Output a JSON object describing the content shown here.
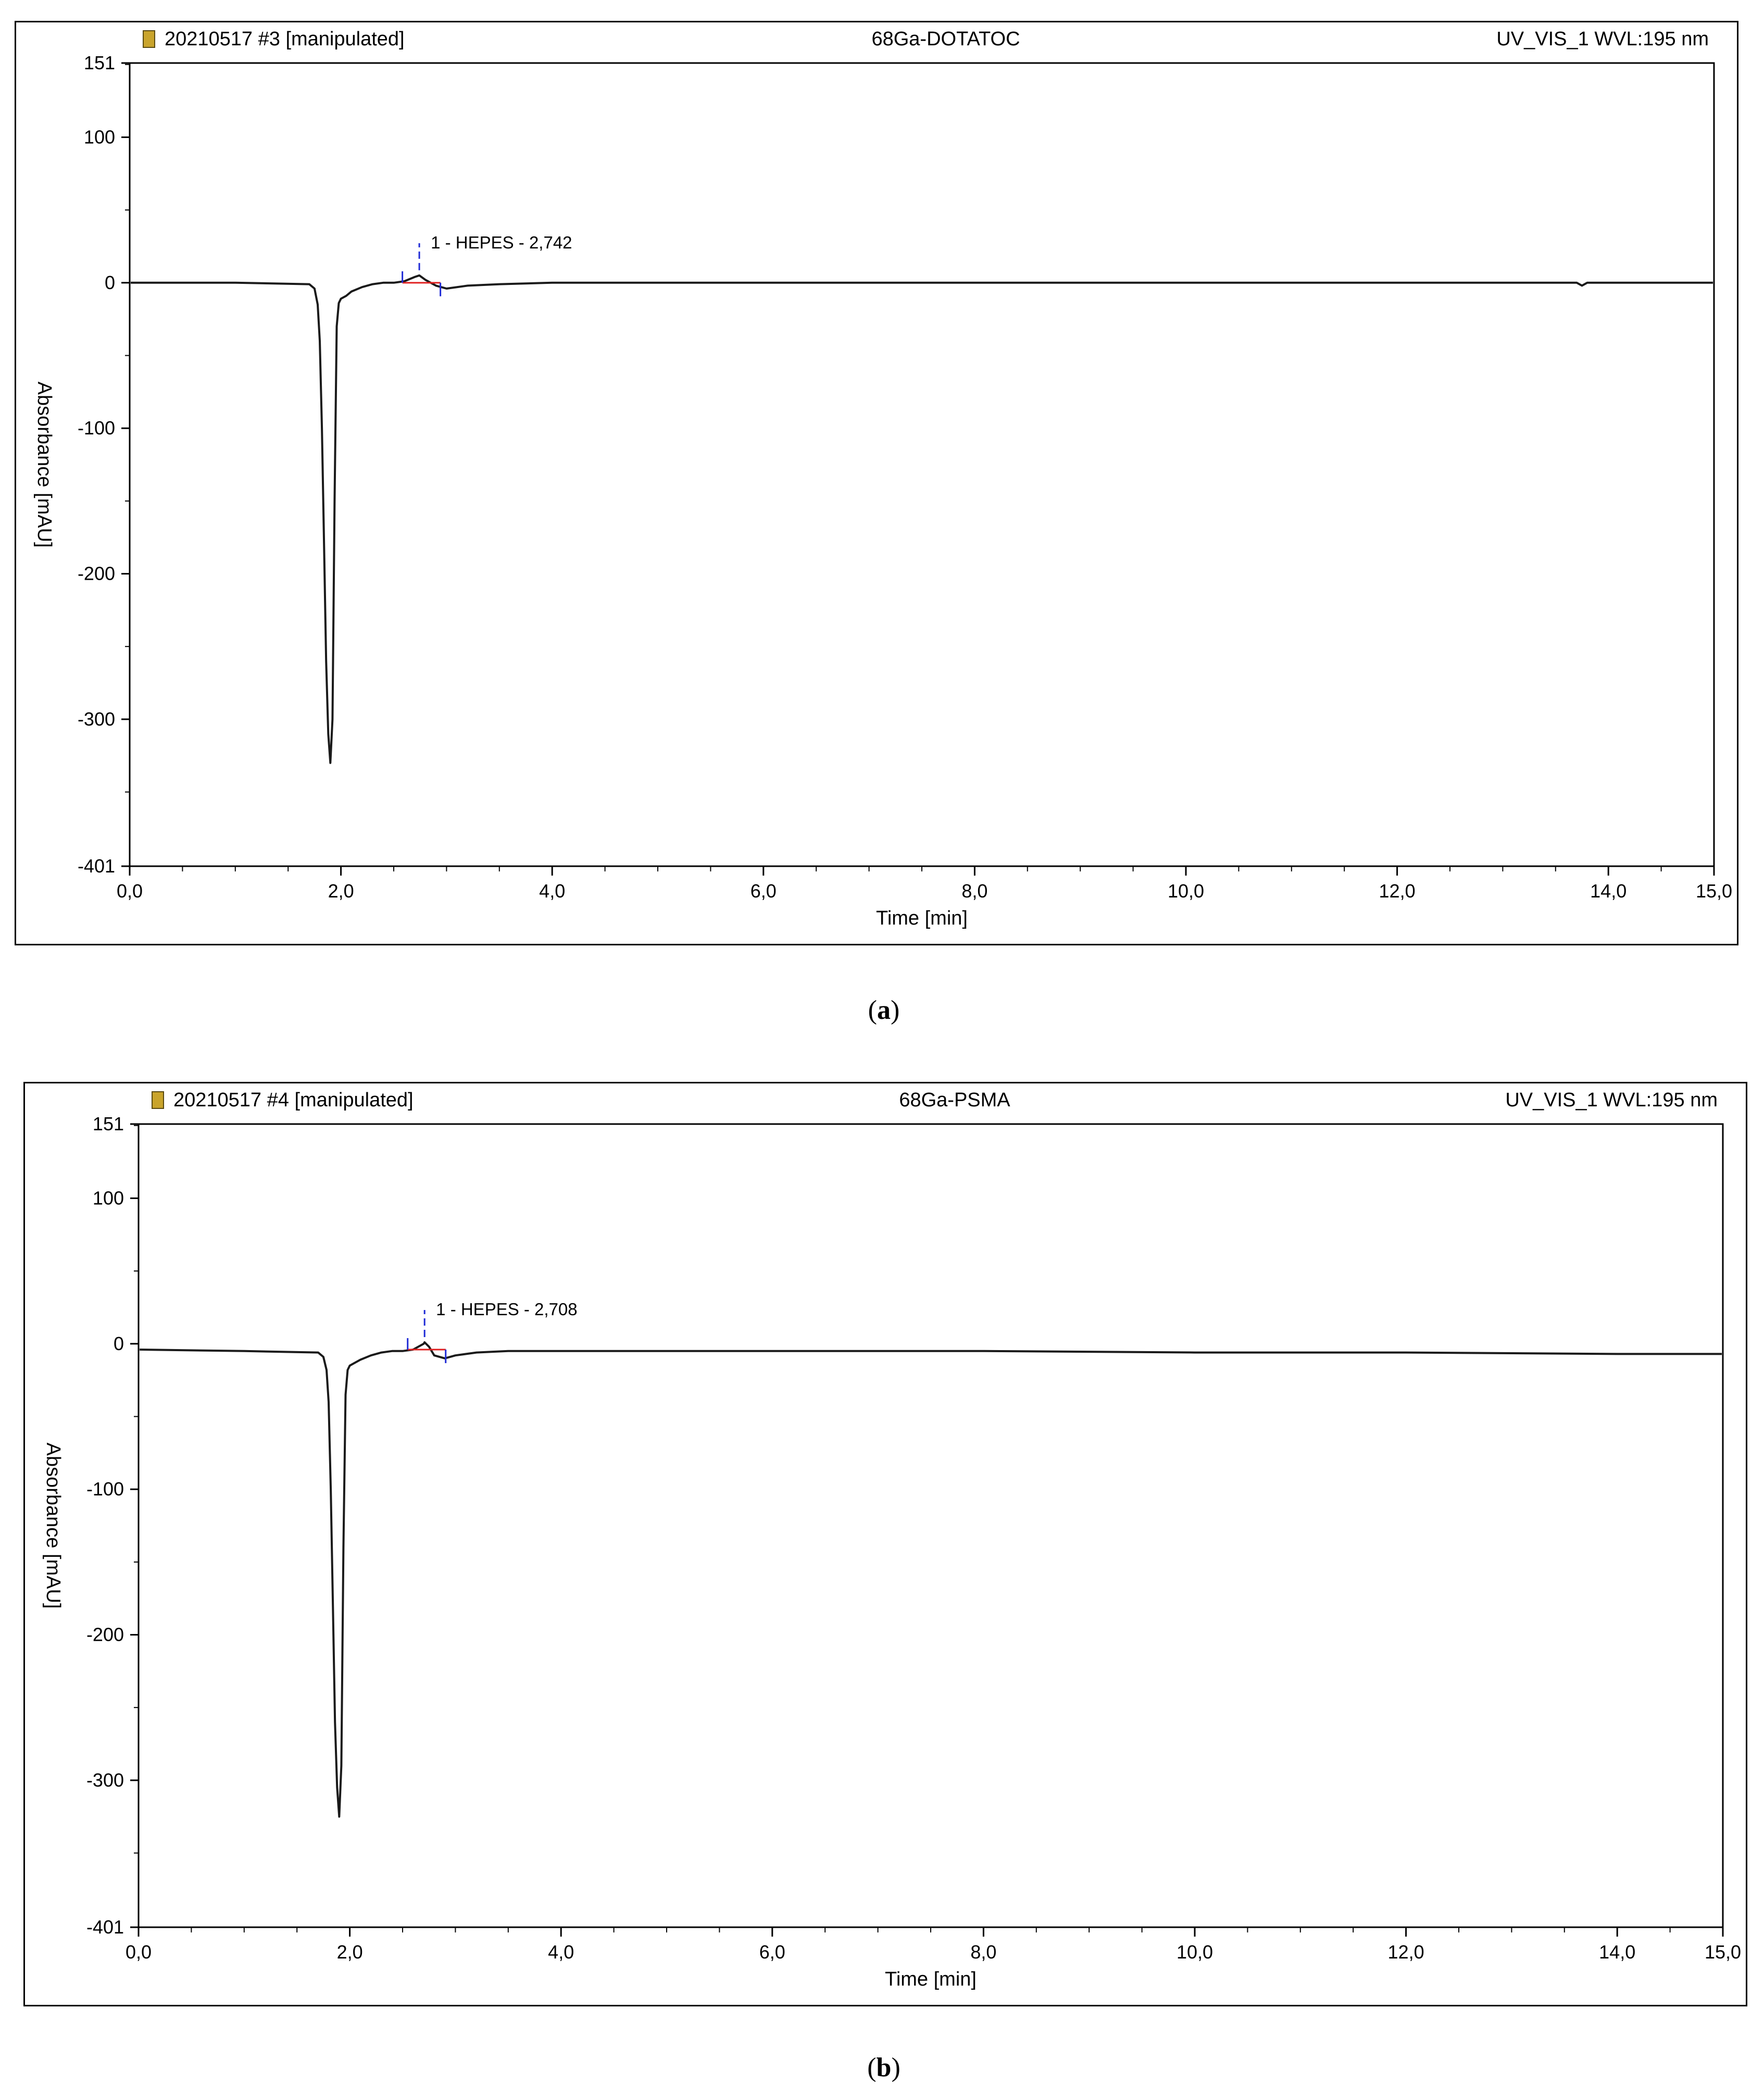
{
  "chart_data": [
    {
      "type": "line",
      "panel_label": "a",
      "header": {
        "injection": "20210517  #3  [manipulated]",
        "sample": "68Ga-DOTATOC",
        "detector": "UV_VIS_1  WVL:195  nm"
      },
      "xlabel": "Time [min]",
      "ylabel": "Absorbance [mAU]",
      "xlim": [
        0,
        15
      ],
      "ylim": [
        -401,
        151
      ],
      "x_ticks": [
        "0,0",
        "2,0",
        "4,0",
        "6,0",
        "8,0",
        "10,0",
        "12,0",
        "14,0",
        "15,0"
      ],
      "x_tick_values": [
        0,
        2,
        4,
        6,
        8,
        10,
        12,
        14,
        15
      ],
      "y_ticks": [
        "151",
        "100",
        "0",
        "-100",
        "-200",
        "-300",
        "-401"
      ],
      "y_tick_values": [
        151,
        100,
        0,
        -100,
        -200,
        -300,
        -401
      ],
      "series": [
        {
          "x": [
            0.0,
            1.0,
            1.7,
            1.75,
            1.78,
            1.8,
            1.82,
            1.84,
            1.86,
            1.88,
            1.9,
            1.92,
            1.94,
            1.96,
            1.98,
            2.0,
            2.05,
            2.1,
            2.2,
            2.3,
            2.4,
            2.5,
            2.6,
            2.7,
            2.742,
            2.8,
            2.9,
            3.0,
            3.2,
            3.5,
            4.0,
            6.0,
            8.0,
            10.0,
            12.0,
            13.7,
            13.75,
            13.8,
            15.0
          ],
          "y": [
            0,
            0,
            -1,
            -4,
            -15,
            -40,
            -100,
            -180,
            -260,
            -310,
            -330,
            -300,
            -150,
            -30,
            -14,
            -11,
            -9,
            -6,
            -3,
            -1,
            0,
            0,
            1,
            4,
            5,
            2,
            -2,
            -4,
            -2,
            -1,
            0,
            0,
            0,
            0,
            0,
            0,
            -2,
            0,
            0
          ]
        }
      ],
      "annotations": [
        {
          "text": "1 - HEPES - 2,742",
          "x": 2.742,
          "y": 5
        }
      ]
    },
    {
      "type": "line",
      "panel_label": "b",
      "header": {
        "injection": "20210517  #4  [manipulated]",
        "sample": "68Ga-PSMA",
        "detector": "UV_VIS_1  WVL:195  nm"
      },
      "xlabel": "Time [min]",
      "ylabel": "Absorbance [mAU]",
      "xlim": [
        0,
        15
      ],
      "ylim": [
        -401,
        151
      ],
      "x_ticks": [
        "0,0",
        "2,0",
        "4,0",
        "6,0",
        "8,0",
        "10,0",
        "12,0",
        "14,0",
        "15,0"
      ],
      "x_tick_values": [
        0,
        2,
        4,
        6,
        8,
        10,
        12,
        14,
        15
      ],
      "y_ticks": [
        "151",
        "100",
        "0",
        "-100",
        "-200",
        "-300",
        "-401"
      ],
      "y_tick_values": [
        151,
        100,
        0,
        -100,
        -200,
        -300,
        -401
      ],
      "series": [
        {
          "x": [
            0.0,
            1.0,
            1.7,
            1.75,
            1.78,
            1.8,
            1.82,
            1.84,
            1.86,
            1.88,
            1.9,
            1.92,
            1.94,
            1.96,
            1.98,
            2.0,
            2.05,
            2.1,
            2.2,
            2.3,
            2.4,
            2.5,
            2.6,
            2.7,
            2.708,
            2.75,
            2.8,
            2.9,
            3.0,
            3.2,
            3.5,
            4.0,
            6.0,
            8.0,
            10.0,
            12.0,
            14.0,
            15.0
          ],
          "y": [
            -4,
            -5,
            -6,
            -9,
            -18,
            -40,
            -100,
            -180,
            -260,
            -305,
            -325,
            -290,
            -140,
            -35,
            -18,
            -15,
            -13,
            -11,
            -8,
            -6,
            -5,
            -5,
            -4,
            0,
            1,
            -2,
            -8,
            -10,
            -8,
            -6,
            -5,
            -5,
            -5,
            -5,
            -6,
            -6,
            -7,
            -7
          ]
        }
      ],
      "annotations": [
        {
          "text": "1 - HEPES - 2,708",
          "x": 2.708,
          "y": 1
        }
      ]
    }
  ],
  "captions": {
    "a": "a",
    "b": "b"
  }
}
